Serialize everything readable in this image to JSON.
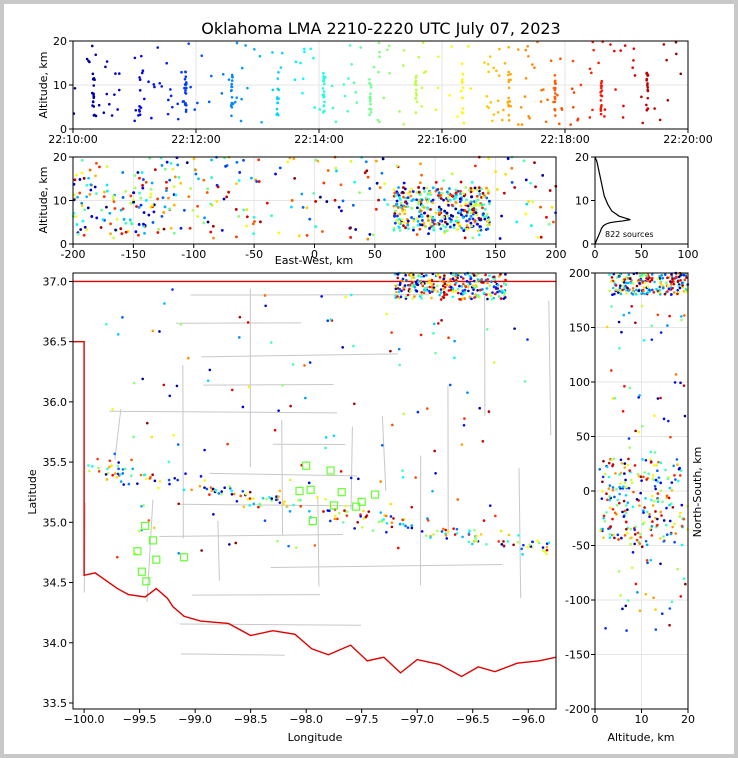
{
  "title": "Oklahoma LMA 2210-2220 UTC July 07, 2023",
  "colors": {
    "background": "#ffffff",
    "frame": "#c8c8c8",
    "state_border": "#e00000",
    "county_lines": "#c8c8c8",
    "station_marker": "#66ff33",
    "histogram_line": "#000000"
  },
  "chart_data": [
    {
      "id": "time_height",
      "type": "scatter",
      "xlabel": "",
      "ylabel": "Altitude, km",
      "xlim": [
        "22:10:00",
        "22:20:00"
      ],
      "ylim": [
        0,
        20
      ],
      "xticks": [
        "22:10:00",
        "22:12:00",
        "22:14:00",
        "22:16:00",
        "22:18:00",
        "22:20:00"
      ],
      "yticks": [
        0,
        10,
        20
      ],
      "color_by": "time (jet colormap, blue to dark red)",
      "sample_points": [
        {
          "x": "22:10:35",
          "y": 9
        },
        {
          "x": "22:10:38",
          "y": 5
        },
        {
          "x": "22:11:50",
          "y": 12
        },
        {
          "x": "22:12:40",
          "y": 7
        },
        {
          "x": "22:13:45",
          "y": 10
        },
        {
          "x": "22:14:50",
          "y": 8
        },
        {
          "x": "22:15:30",
          "y": 9
        },
        {
          "x": "22:16:35",
          "y": 8
        },
        {
          "x": "22:17:30",
          "y": 6
        },
        {
          "x": "22:18:20",
          "y": 6
        },
        {
          "x": "22:19:45",
          "y": 5
        }
      ]
    },
    {
      "id": "ew_height",
      "type": "scatter",
      "xlabel": "East-West, km",
      "ylabel": "Altitude, km",
      "xlim": [
        -200,
        200
      ],
      "ylim": [
        0,
        20
      ],
      "xticks": [
        -200,
        -150,
        -100,
        -50,
        0,
        50,
        100,
        150,
        200
      ],
      "yticks": [
        0,
        10,
        20
      ],
      "dense_cluster": {
        "x_range": [
          60,
          150
        ],
        "y_range": [
          3,
          14
        ]
      }
    },
    {
      "id": "altitude_histogram",
      "type": "line",
      "xlim": [
        0,
        100
      ],
      "ylim": [
        0,
        20
      ],
      "xticks": [
        0,
        50,
        100
      ],
      "yticks": [
        0,
        10,
        20
      ],
      "annotation": "822 sources",
      "x": [
        0,
        2,
        4,
        6,
        7,
        9,
        12,
        16,
        22,
        30,
        38,
        26,
        18,
        14,
        10,
        8,
        6,
        4,
        2,
        0
      ],
      "y": [
        0,
        1,
        2,
        3,
        3.6,
        4.2,
        4.6,
        4.9,
        5.1,
        5.3,
        5.6,
        6.4,
        7.6,
        9,
        11,
        13,
        15,
        17,
        19,
        20
      ]
    },
    {
      "id": "plan_view",
      "type": "scatter",
      "xlabel": "Longitude",
      "ylabel": "Latitude",
      "xlim": [
        -100.1,
        -95.75
      ],
      "ylim": [
        33.45,
        37.07
      ],
      "xticks": [
        -100.0,
        -99.5,
        -99.0,
        -98.5,
        -98.0,
        -97.5,
        -97.0,
        -96.5,
        -96.0
      ],
      "yticks": [
        33.5,
        34.0,
        34.5,
        35.0,
        35.5,
        36.0,
        36.5,
        37.0
      ],
      "xtick_labels": [
        "−100.0",
        "−99.5",
        "−99.0",
        "−98.5",
        "−98.0",
        "−97.5",
        "−97.0",
        "−96.5",
        "−96.0"
      ],
      "ytick_labels": [
        "33.5",
        "34.0",
        "34.5",
        "35.0",
        "35.5",
        "36.0",
        "36.5",
        "37.0"
      ],
      "stations": [
        {
          "lon": -99.45,
          "lat": 34.97
        },
        {
          "lon": -99.38,
          "lat": 34.85
        },
        {
          "lon": -99.52,
          "lat": 34.76
        },
        {
          "lon": -99.35,
          "lat": 34.69
        },
        {
          "lon": -99.48,
          "lat": 34.59
        },
        {
          "lon": -99.44,
          "lat": 34.51
        },
        {
          "lon": -99.1,
          "lat": 34.71
        },
        {
          "lon": -98.0,
          "lat": 35.47
        },
        {
          "lon": -97.78,
          "lat": 35.43
        },
        {
          "lon": -97.68,
          "lat": 35.25
        },
        {
          "lon": -97.96,
          "lat": 35.27
        },
        {
          "lon": -98.06,
          "lat": 35.26
        },
        {
          "lon": -97.55,
          "lat": 35.13
        },
        {
          "lon": -97.5,
          "lat": 35.17
        },
        {
          "lon": -97.38,
          "lat": 35.23
        },
        {
          "lon": -97.94,
          "lat": 35.01
        },
        {
          "lon": -97.75,
          "lat": 35.14
        }
      ]
    },
    {
      "id": "ns_height",
      "type": "scatter",
      "xlabel": "Altitude, km",
      "ylabel": "North-South, km",
      "xlim": [
        0,
        20
      ],
      "ylim": [
        -200,
        200
      ],
      "xticks": [
        0,
        10,
        20
      ],
      "yticks": [
        -200,
        -150,
        -100,
        -50,
        0,
        50,
        100,
        150,
        200
      ]
    }
  ]
}
